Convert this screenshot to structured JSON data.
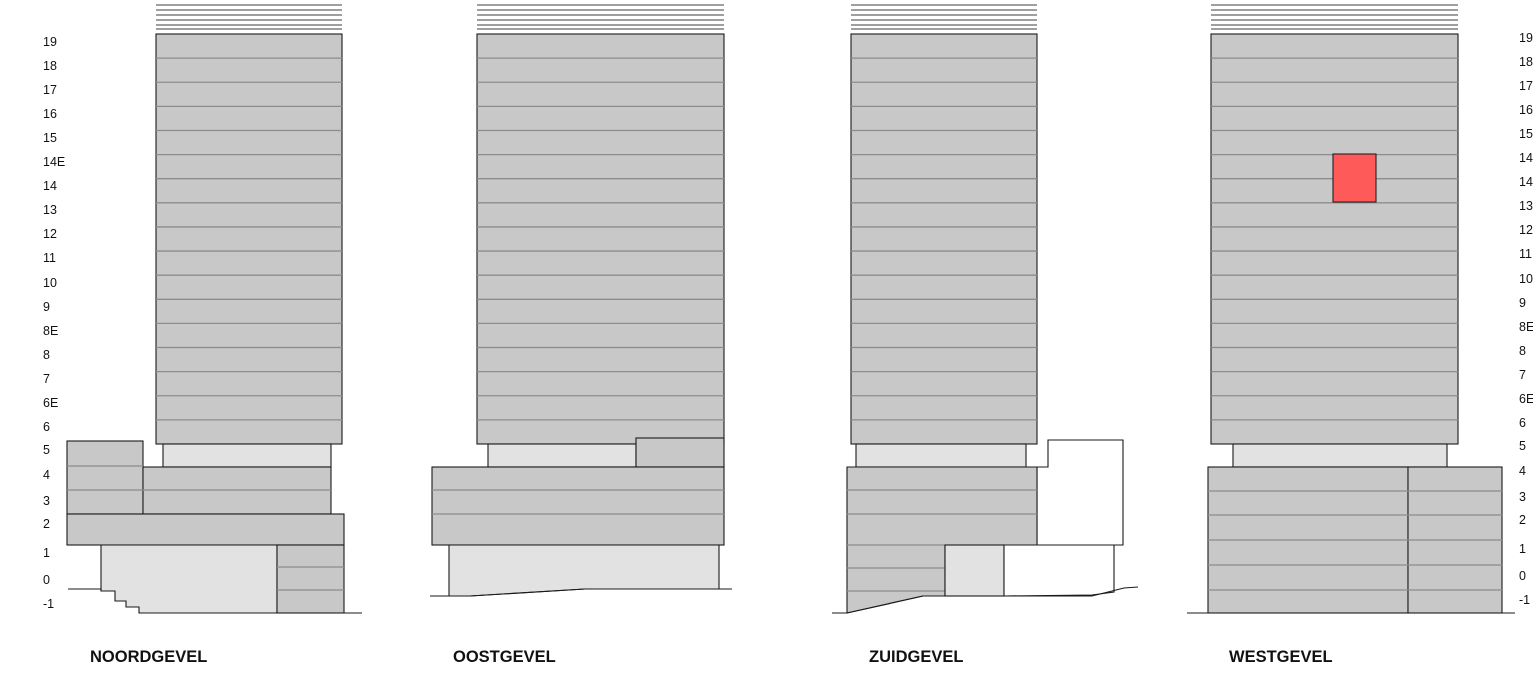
{
  "levels": [
    "19",
    "18",
    "17",
    "16",
    "15",
    "14E",
    "14",
    "13",
    "12",
    "11",
    "10",
    "9",
    "8E",
    "8",
    "7",
    "6E",
    "6",
    "5",
    "4",
    "3",
    "2",
    "1",
    "0",
    "-1"
  ],
  "facades": {
    "north": "NOORDGEVEL",
    "east": "OOSTGEVEL",
    "south": "ZUIDGEVEL",
    "west": "WESTGEVEL"
  },
  "colors": {
    "facade_fill": "#c8c8c8",
    "plinth_fill": "#e2e2e2",
    "floor_line": "#8c8c8c",
    "highlight": "#ff5a5a"
  },
  "highlight": {
    "facade": "WESTGEVEL",
    "levels": [
      "14E",
      "14"
    ]
  }
}
